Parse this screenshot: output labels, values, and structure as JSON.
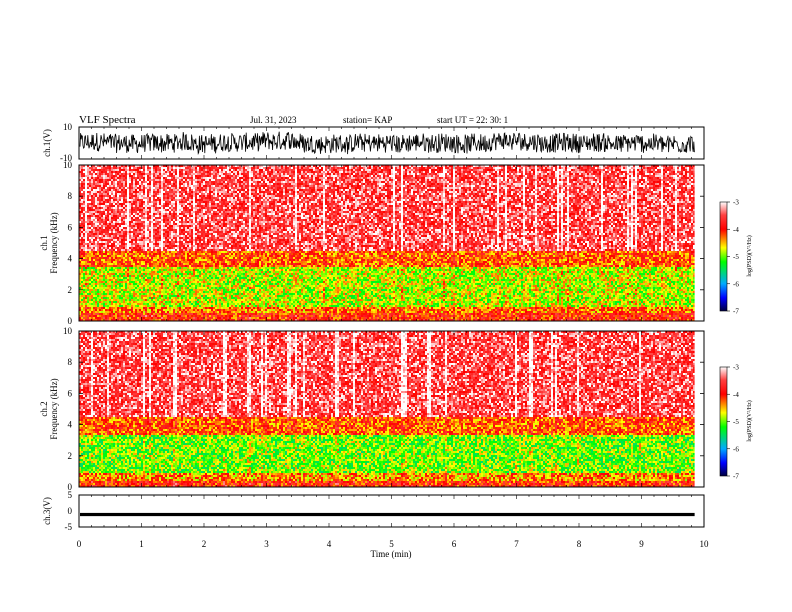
{
  "header": {
    "title": "VLF Spectra",
    "date": "Jul. 31, 2023",
    "station": "station= KAP",
    "start": "start UT =  22: 30: 1"
  },
  "chart_data": [
    {
      "type": "line",
      "panel": "ch1-waveform",
      "ylabel": "ch.1(V)",
      "ylim": [
        -10,
        10
      ],
      "yticks": [
        "10",
        "-10"
      ],
      "note": "dense noisy voltage trace, roughly centered near 0 V"
    },
    {
      "type": "heatmap",
      "panel": "ch1-spectrogram",
      "ylabel": "ch.1\nFrequency (kHz)",
      "ylim": [
        0,
        10
      ],
      "yticks": [
        "0",
        "2",
        "4",
        "6",
        "8",
        "10"
      ],
      "colorbar": {
        "label": "log(PSD)(V²/Hz)",
        "range": [
          -7,
          -3
        ],
        "ticks": [
          "-3",
          "-4",
          "-5",
          "-6",
          "-7"
        ]
      },
      "bands": [
        {
          "from": 0,
          "to": 0.6,
          "level": -4.0
        },
        {
          "from": 0.6,
          "to": 1.0,
          "level": -4.3
        },
        {
          "from": 1.0,
          "to": 3.5,
          "level": -4.8
        },
        {
          "from": 3.5,
          "to": 4.5,
          "level": -4.2
        },
        {
          "from": 4.5,
          "to": 10,
          "level": -3.5
        }
      ]
    },
    {
      "type": "heatmap",
      "panel": "ch2-spectrogram",
      "ylabel": "ch.2\nFrequency (kHz)",
      "ylim": [
        0,
        10
      ],
      "yticks": [
        "0",
        "2",
        "4",
        "6",
        "8",
        "10"
      ],
      "colorbar": {
        "label": "log(PSD)(V²/Hz)",
        "range": [
          -7,
          -3
        ],
        "ticks": [
          "-3",
          "-4",
          "-5",
          "-6",
          "-7"
        ]
      },
      "bands": [
        {
          "from": 0,
          "to": 0.5,
          "level": -4.0
        },
        {
          "from": 0.5,
          "to": 1.0,
          "level": -4.4
        },
        {
          "from": 1.0,
          "to": 3.4,
          "level": -5.0
        },
        {
          "from": 3.4,
          "to": 4.5,
          "level": -4.2
        },
        {
          "from": 4.5,
          "to": 10,
          "level": -3.5
        }
      ]
    },
    {
      "type": "line",
      "panel": "ch3-waveform",
      "ylabel": "ch.3(V)",
      "ylim": [
        -5,
        5
      ],
      "yticks": [
        "5",
        "0",
        "-5"
      ],
      "note": "thin flat trace slightly below 0 V (about -1 V)"
    }
  ],
  "xaxis": {
    "label": "Time (min)",
    "range": [
      0,
      10
    ],
    "ticks": [
      "0",
      "1",
      "2",
      "3",
      "4",
      "5",
      "6",
      "7",
      "8",
      "9",
      "10"
    ],
    "data_end": 9.85
  }
}
